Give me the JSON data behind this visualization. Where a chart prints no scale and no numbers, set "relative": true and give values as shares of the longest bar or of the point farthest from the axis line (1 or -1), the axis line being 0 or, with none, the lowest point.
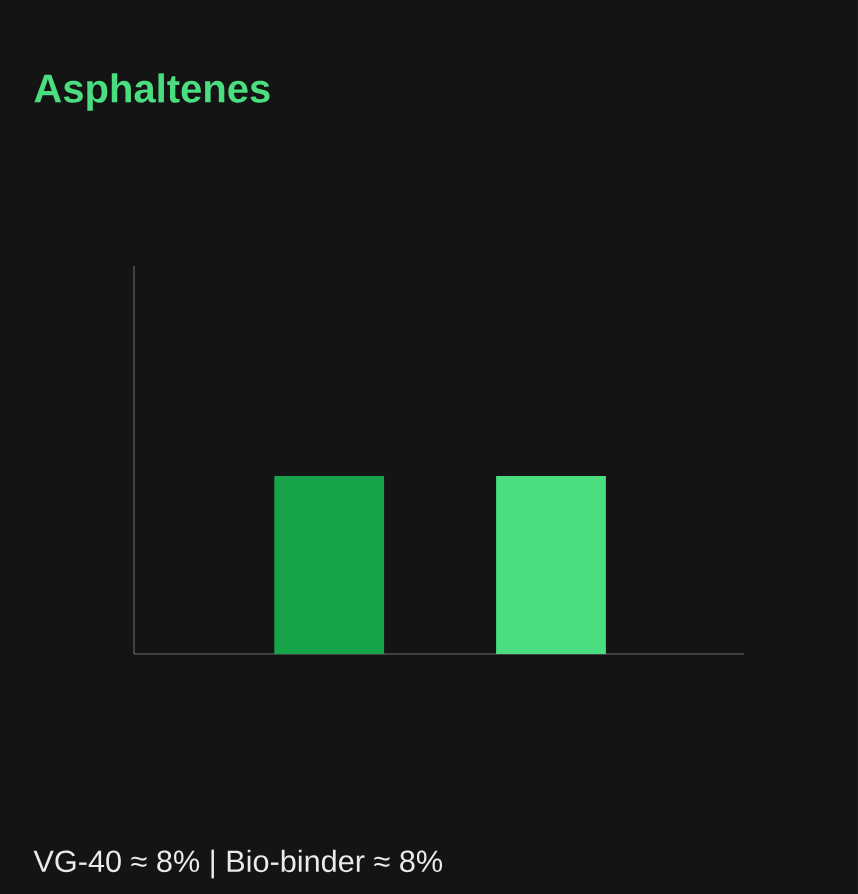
{
  "chart_data": {
    "type": "bar",
    "title": "Asphaltenes",
    "categories": [
      null,
      null
    ],
    "colors": [
      "#16a34a",
      "#4ade80"
    ],
    "values": [
      1,
      1
    ],
    "relative": true,
    "annotations": [
      "VG-40 ≈ 8% | Bio-binder ≈ 8%"
    ]
  }
}
